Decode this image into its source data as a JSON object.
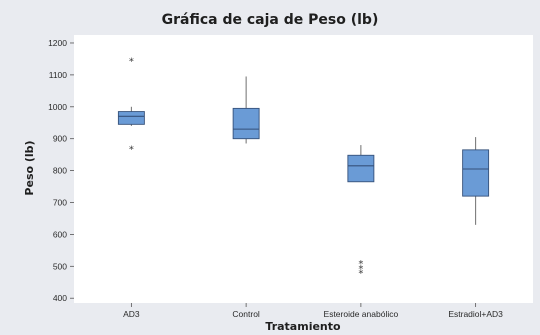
{
  "colors": {
    "background": "#e9ebf0",
    "plot_area": "#ffffff",
    "box_fill": "#6a9bd6",
    "box_stroke": "#35517a",
    "whisker": "#6f6f6f",
    "outlier": "#3a3a3a"
  },
  "chart_data": {
    "type": "boxplot",
    "title": "Gráfica de caja de Peso (lb)",
    "xlabel": "Tratamiento",
    "ylabel": "Peso (lb)",
    "ylim": [
      385,
      1225
    ],
    "yticks": [
      400,
      500,
      600,
      700,
      800,
      900,
      1000,
      1100,
      1200
    ],
    "grid": false,
    "outlier_marker": "*",
    "categories": [
      "AD3",
      "Control",
      "Esteroide anabólico",
      "Estradiol+AD3"
    ],
    "boxes": [
      {
        "category": "AD3",
        "whisker_low": 940,
        "q1": 945,
        "median": 970,
        "q3": 985,
        "whisker_high": 1000,
        "outliers": [
          870,
          1145
        ]
      },
      {
        "category": "Control",
        "whisker_low": 885,
        "q1": 900,
        "median": 930,
        "q3": 995,
        "whisker_high": 1095,
        "outliers": []
      },
      {
        "category": "Esteroide anabólico",
        "whisker_low": 765,
        "q1": 765,
        "median": 815,
        "q3": 848,
        "whisker_high": 880,
        "outliers": [
          480,
          495,
          510
        ]
      },
      {
        "category": "Estradiol+AD3",
        "whisker_low": 630,
        "q1": 720,
        "median": 805,
        "q3": 865,
        "whisker_high": 905,
        "outliers": []
      }
    ]
  }
}
